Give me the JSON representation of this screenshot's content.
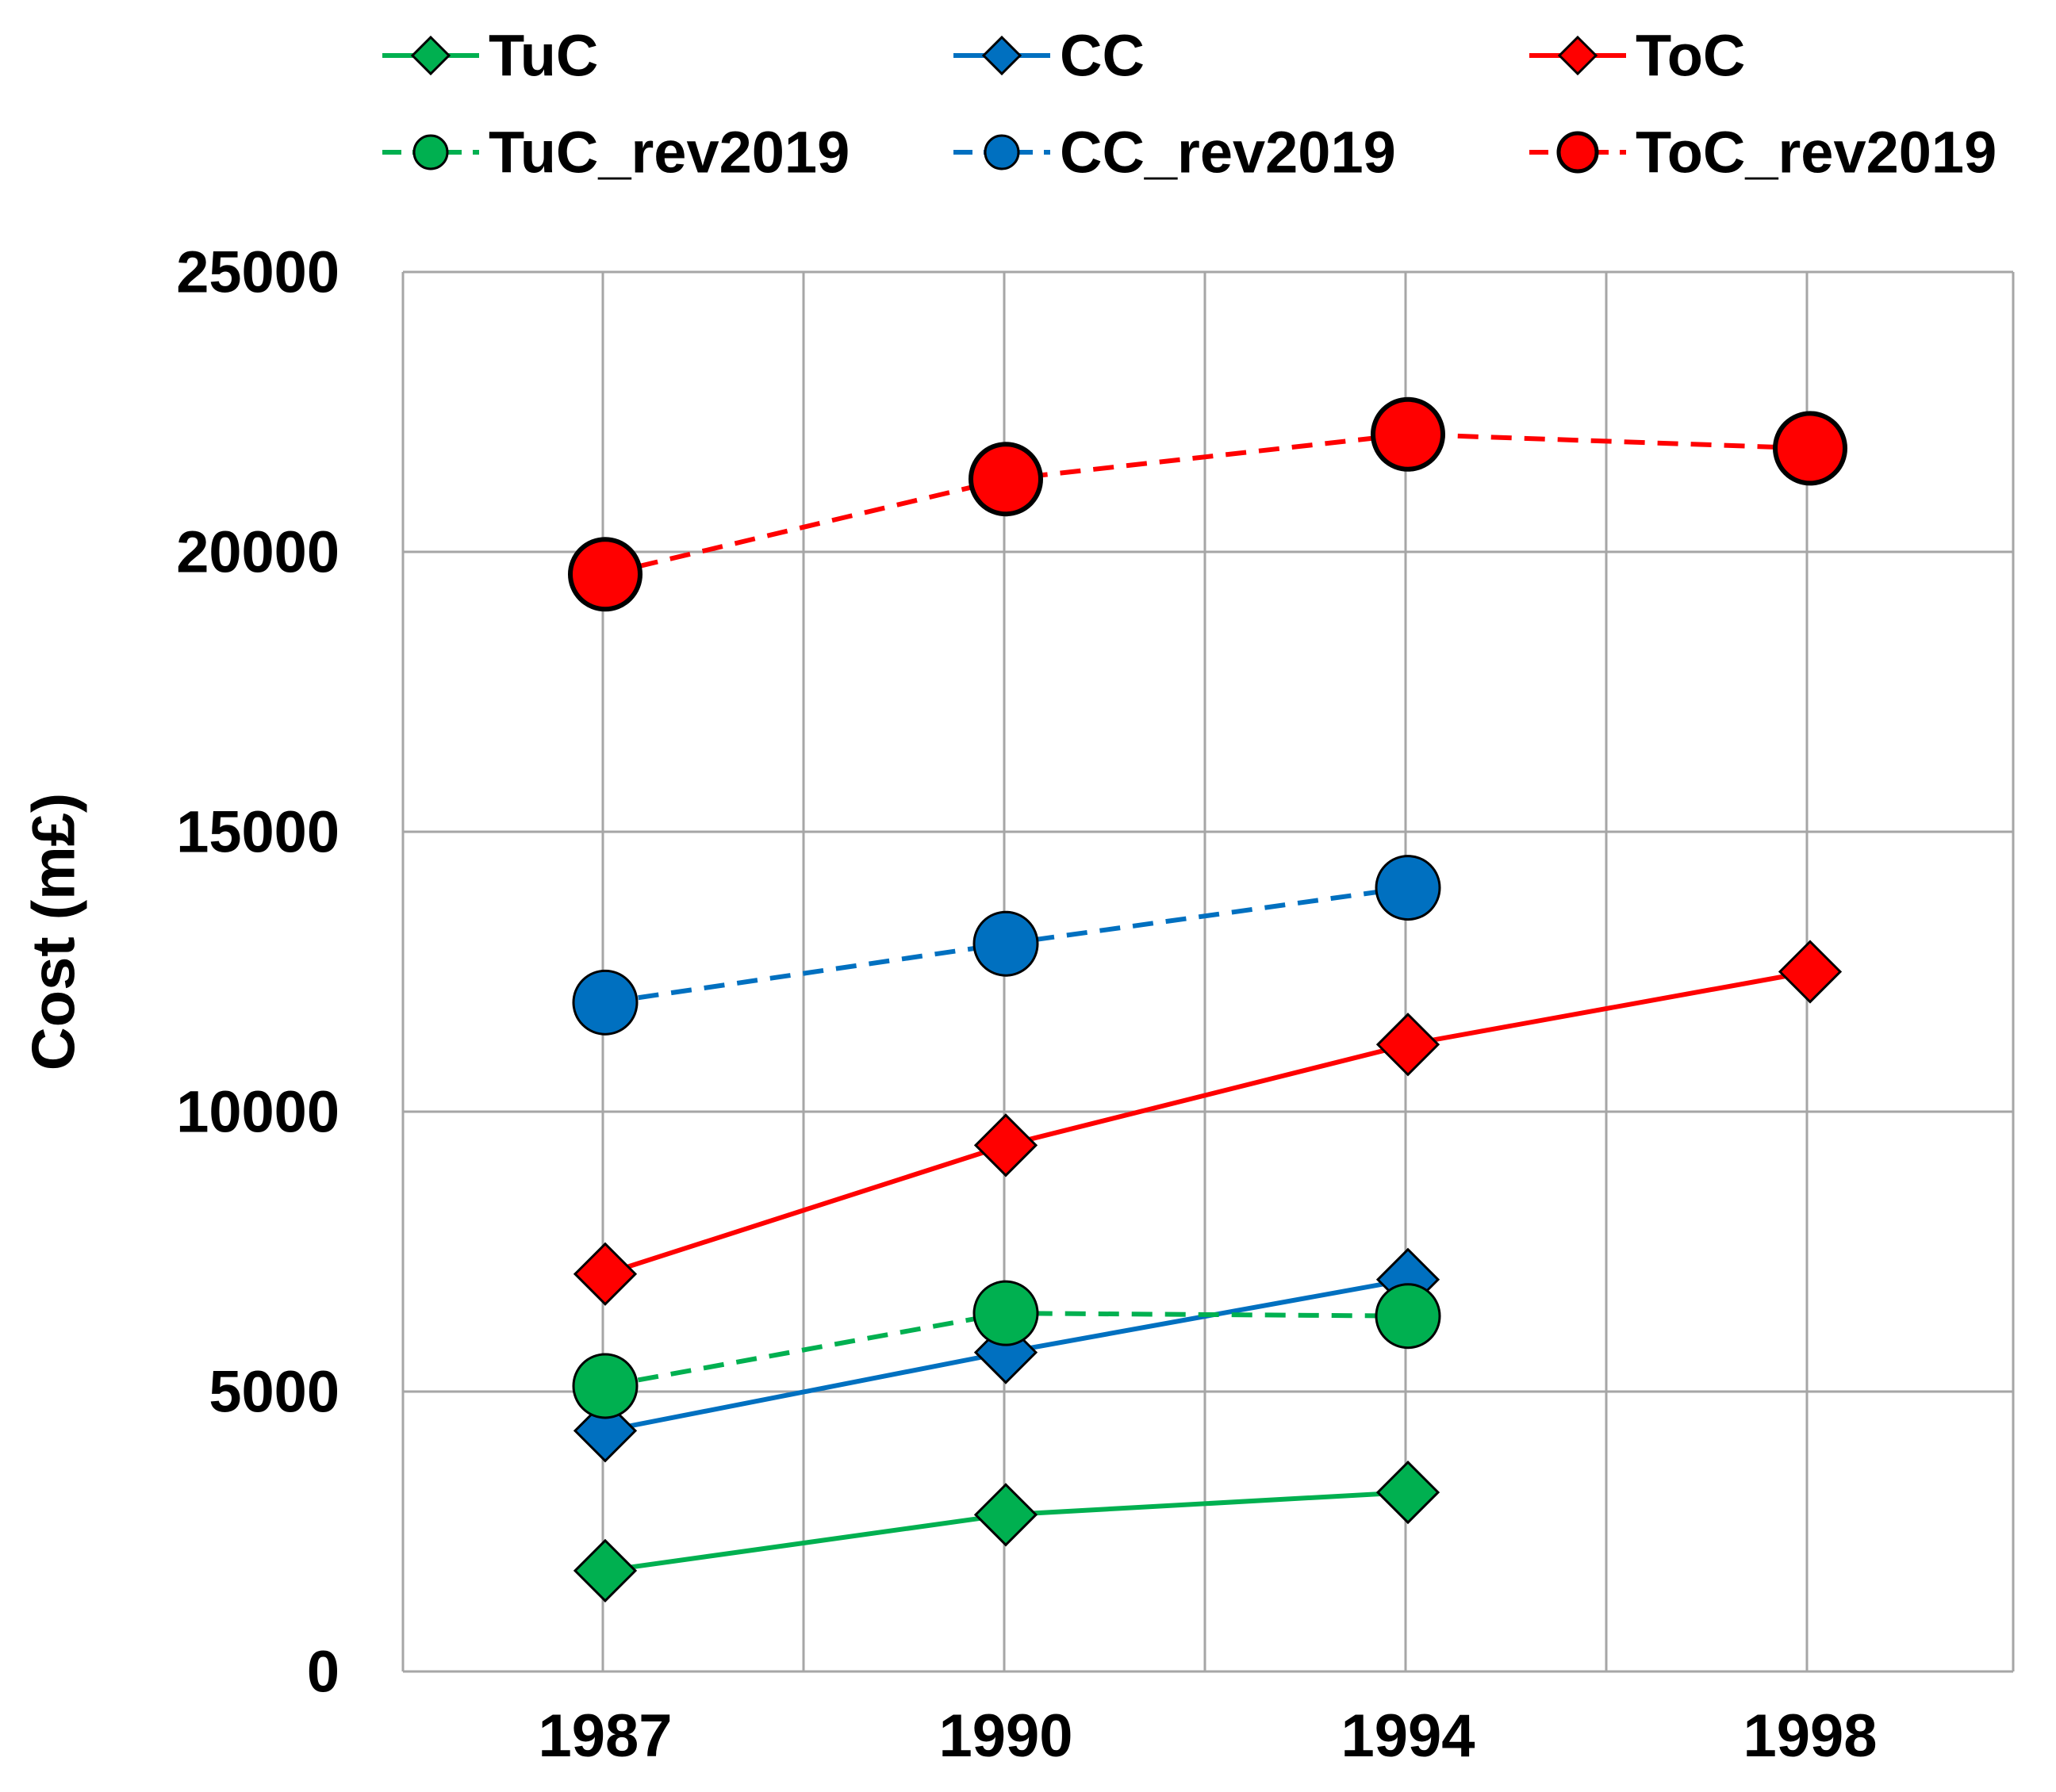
{
  "chart_data": {
    "type": "line",
    "title": "",
    "xlabel": "",
    "ylabel": "Cost (m£)",
    "ylim": [
      0,
      25000
    ],
    "yticks": [
      0,
      5000,
      10000,
      15000,
      20000,
      25000
    ],
    "categories": [
      "1987",
      "1990",
      "1994",
      "1998"
    ],
    "grid": true,
    "legend_position": "top",
    "series": [
      {
        "name": "TuC",
        "color": "#00B050",
        "style": "solid",
        "marker": "diamond",
        "values": [
          1800,
          2800,
          3200,
          null
        ]
      },
      {
        "name": "CC",
        "color": "#0070C0",
        "style": "solid",
        "marker": "diamond",
        "values": [
          4300,
          5700,
          7000,
          null
        ]
      },
      {
        "name": "ToC",
        "color": "#FF0000",
        "style": "solid",
        "marker": "diamond",
        "values": [
          7100,
          9400,
          11200,
          12500
        ]
      },
      {
        "name": "TuC_rev2019",
        "color": "#00B050",
        "style": "dashed",
        "marker": "circle",
        "values": [
          5100,
          6400,
          6350,
          null
        ]
      },
      {
        "name": "CC_rev2019",
        "color": "#0070C0",
        "style": "dashed",
        "marker": "circle",
        "values": [
          11950,
          13000,
          14000,
          null
        ]
      },
      {
        "name": "ToC_rev2019",
        "color": "#FF0000",
        "style": "dashed",
        "marker": "circle",
        "values": [
          19600,
          21300,
          22100,
          21850
        ]
      }
    ]
  }
}
